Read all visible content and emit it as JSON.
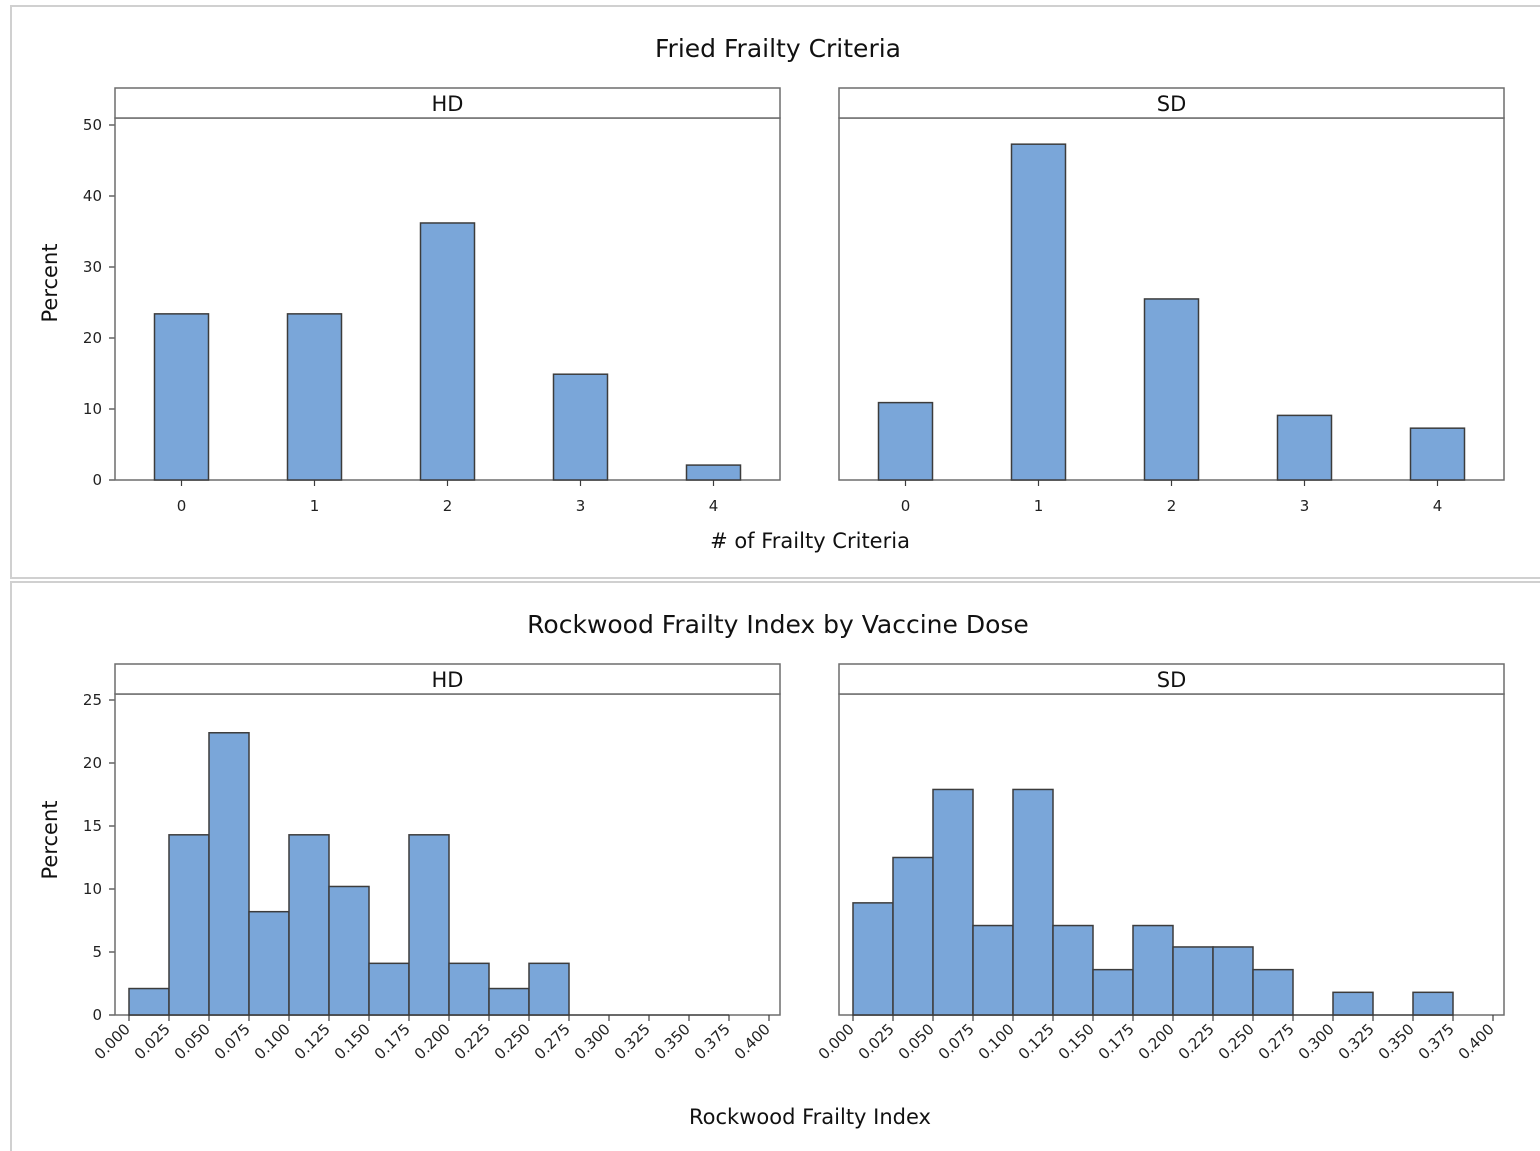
{
  "chart_data": [
    {
      "type": "bar",
      "title": "Fried Frailty Criteria",
      "xlabel": "# of Frailty Criteria",
      "ylabel": "Percent",
      "ylim": [
        0,
        50
      ],
      "yticks": [
        "0",
        "10",
        "20",
        "30",
        "40",
        "50"
      ],
      "categories": [
        "0",
        "1",
        "2",
        "3",
        "4"
      ],
      "panels": [
        {
          "name": "HD",
          "values": [
            23.4,
            23.4,
            36.2,
            14.9,
            2.1
          ]
        },
        {
          "name": "SD",
          "values": [
            10.9,
            47.3,
            25.5,
            9.1,
            7.3
          ]
        }
      ],
      "grid": false,
      "colors": {
        "bar": "#7aa6d9",
        "edge": "#3c3c3c"
      }
    },
    {
      "type": "histogram",
      "title": "Rockwood Frailty Index by Vaccine Dose",
      "xlabel": "Rockwood Frailty Index",
      "ylabel": "Percent",
      "ylim": [
        0,
        25
      ],
      "xlim": [
        0,
        0.4
      ],
      "yticks": [
        "0",
        "5",
        "10",
        "15",
        "20",
        "25"
      ],
      "bin_width": 0.025,
      "xticks": [
        "0.000",
        "0.025",
        "0.050",
        "0.075",
        "0.100",
        "0.125",
        "0.150",
        "0.175",
        "0.200",
        "0.225",
        "0.250",
        "0.275",
        "0.300",
        "0.325",
        "0.350",
        "0.375",
        "0.400"
      ],
      "panels": [
        {
          "name": "HD",
          "values": [
            2.1,
            14.3,
            22.4,
            8.2,
            14.3,
            10.2,
            4.1,
            14.3,
            4.1,
            2.1,
            4.1,
            0,
            0,
            0,
            0
          ]
        },
        {
          "name": "SD",
          "values": [
            8.9,
            12.5,
            17.9,
            7.1,
            17.9,
            7.1,
            3.6,
            7.1,
            5.4,
            5.4,
            3.6,
            0,
            1.8,
            0,
            1.8
          ]
        }
      ],
      "grid": false,
      "colors": {
        "bar": "#7aa6d9",
        "edge": "#3c3c3c"
      }
    }
  ]
}
